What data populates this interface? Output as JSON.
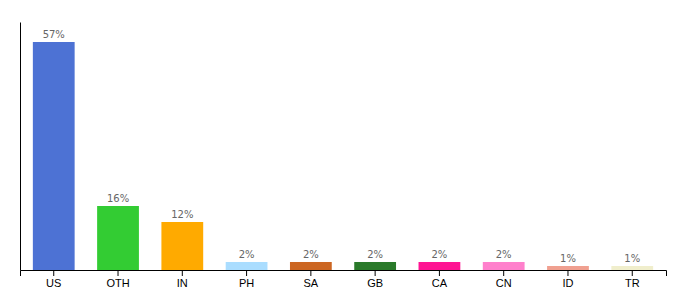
{
  "chart_data": {
    "type": "bar",
    "categories": [
      "US",
      "OTH",
      "IN",
      "PH",
      "SA",
      "GB",
      "CA",
      "CN",
      "ID",
      "TR"
    ],
    "values": [
      57,
      16,
      12,
      2,
      2,
      2,
      2,
      2,
      1,
      1
    ],
    "value_labels": [
      "57%",
      "16%",
      "12%",
      "2%",
      "2%",
      "2%",
      "2%",
      "2%",
      "1%",
      "1%"
    ],
    "colors": [
      "#4d72d4",
      "#33cc33",
      "#ffaa00",
      "#aaddff",
      "#cc6622",
      "#2a7a2a",
      "#ff1493",
      "#ff80cc",
      "#f0a090",
      "#f0eecc"
    ],
    "ylim": [
      0,
      62
    ],
    "grid": false,
    "data_labels": true,
    "tick_labels": "x"
  }
}
